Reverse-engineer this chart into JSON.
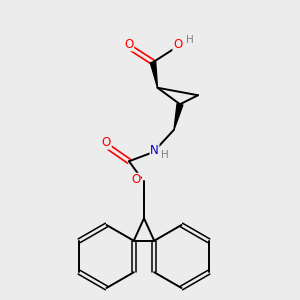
{
  "bg_color": "#ececec",
  "bond_color": "#000000",
  "bond_width": 1.4,
  "atom_colors": {
    "O": "#ff0000",
    "N": "#0000cc",
    "C": "#000000",
    "H": "#808080"
  },
  "figsize": [
    3.0,
    3.0
  ],
  "dpi": 100
}
